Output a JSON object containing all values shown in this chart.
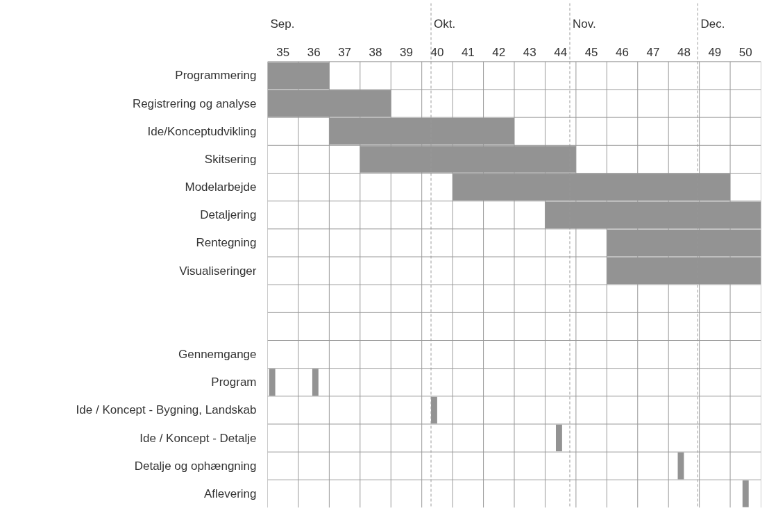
{
  "chart_data": {
    "type": "bar",
    "orientation": "horizontal",
    "categories": [
      "Programmering",
      "Registrering og analyse",
      "Ide/Konceptudvikling",
      "Skitsering",
      "Modelarbejde",
      "Detaljering",
      "Rentegning",
      "Visualiseringer",
      null,
      null,
      "Gennemgange",
      "Program",
      "Ide / Koncept - Bygning, Landskab",
      "Ide / Koncept - Detalje",
      "Detalje og ophængning",
      "Aflevering"
    ],
    "series": [
      {
        "color": "#939393",
        "base": [
          35,
          35,
          37,
          38,
          41,
          44,
          46,
          46,
          null,
          null,
          null,
          35.05,
          40.3,
          44.35,
          48.3,
          50.4
        ],
        "values": [
          2,
          4,
          6,
          7,
          9,
          7,
          5,
          5,
          null,
          null,
          null,
          0.2,
          0.2,
          0.2,
          0.2,
          0.2
        ]
      },
      {
        "color": "#939393",
        "base": [
          null,
          null,
          null,
          null,
          null,
          null,
          null,
          null,
          null,
          null,
          null,
          36.45,
          null,
          null,
          null,
          null
        ],
        "values": [
          null,
          null,
          null,
          null,
          null,
          null,
          null,
          null,
          null,
          null,
          null,
          0.2,
          null,
          null,
          null,
          null
        ]
      }
    ],
    "xlim": [
      35,
      51
    ],
    "xticks": [
      {
        "value": 35.5,
        "label": "35"
      },
      {
        "value": 36.5,
        "label": "36"
      },
      {
        "value": 37.5,
        "label": "37"
      },
      {
        "value": 38.5,
        "label": "38"
      },
      {
        "value": 39.5,
        "label": "39"
      },
      {
        "value": 40.5,
        "label": "40"
      },
      {
        "value": 41.5,
        "label": "41"
      },
      {
        "value": 42.5,
        "label": "42"
      },
      {
        "value": 43.5,
        "label": "43"
      },
      {
        "value": 44.5,
        "label": "44"
      },
      {
        "value": 45.5,
        "label": "45"
      },
      {
        "value": 46.5,
        "label": "46"
      },
      {
        "value": 47.5,
        "label": "47"
      },
      {
        "value": 48.5,
        "label": "48"
      },
      {
        "value": 49.5,
        "label": "49"
      },
      {
        "value": 50.5,
        "label": "50"
      }
    ],
    "grid": true,
    "ref_lines": [
      {
        "axis": "x",
        "value": 40.3,
        "label": "Okt.",
        "color": "#999999",
        "line_style": "dashed"
      },
      {
        "axis": "x",
        "value": 44.8,
        "label": "Nov.",
        "color": "#999999",
        "line_style": "dashed"
      },
      {
        "axis": "x",
        "value": 48.95,
        "label": "Dec.",
        "color": "#999999",
        "line_style": "dashed"
      }
    ],
    "annotations": [
      "Sep."
    ]
  }
}
